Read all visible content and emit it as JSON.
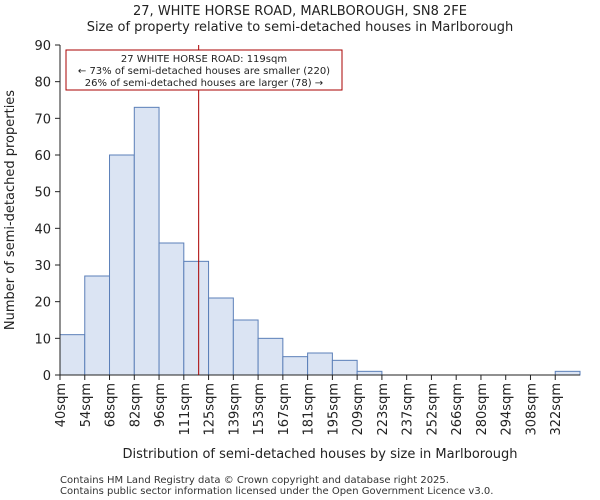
{
  "title_line1": "27, WHITE HORSE ROAD, MARLBOROUGH, SN8 2FE",
  "title_line2": "Size of property relative to semi-detached houses in Marlborough",
  "footer_line1": "Contains HM Land Registry data © Crown copyright and database right 2025.",
  "footer_line2": "Contains public sector information licensed under the Open Government Licence v3.0.",
  "colors": {
    "bar_fill": "#dbe4f3",
    "bar_stroke": "#5b7fb8",
    "marker": "#aa0000",
    "axis": "#222222"
  },
  "chart_data": {
    "type": "bar",
    "title": "Size of property relative to semi-detached houses in Marlborough",
    "xlabel": "Distribution of semi-detached houses by size in Marlborough",
    "ylabel": "Number of semi-detached properties",
    "ylim": [
      0,
      90
    ],
    "yticks": [
      0,
      10,
      20,
      30,
      40,
      50,
      60,
      70,
      80,
      90
    ],
    "categories": [
      "40sqm",
      "54sqm",
      "68sqm",
      "82sqm",
      "96sqm",
      "111sqm",
      "125sqm",
      "139sqm",
      "153sqm",
      "167sqm",
      "181sqm",
      "195sqm",
      "209sqm",
      "223sqm",
      "237sqm",
      "252sqm",
      "266sqm",
      "280sqm",
      "294sqm",
      "308sqm",
      "322sqm"
    ],
    "values": [
      11,
      27,
      60,
      73,
      36,
      31,
      21,
      15,
      10,
      5,
      6,
      4,
      1,
      0,
      0,
      0,
      0,
      0,
      0,
      0,
      1
    ],
    "marker": {
      "value_sqm": 119,
      "bin_position": 5.6
    },
    "annotation": {
      "line1": "27 WHITE HORSE ROAD: 119sqm",
      "line2": "← 73% of semi-detached houses are smaller (220)",
      "line3": "26% of semi-detached houses are larger (78) →"
    }
  }
}
